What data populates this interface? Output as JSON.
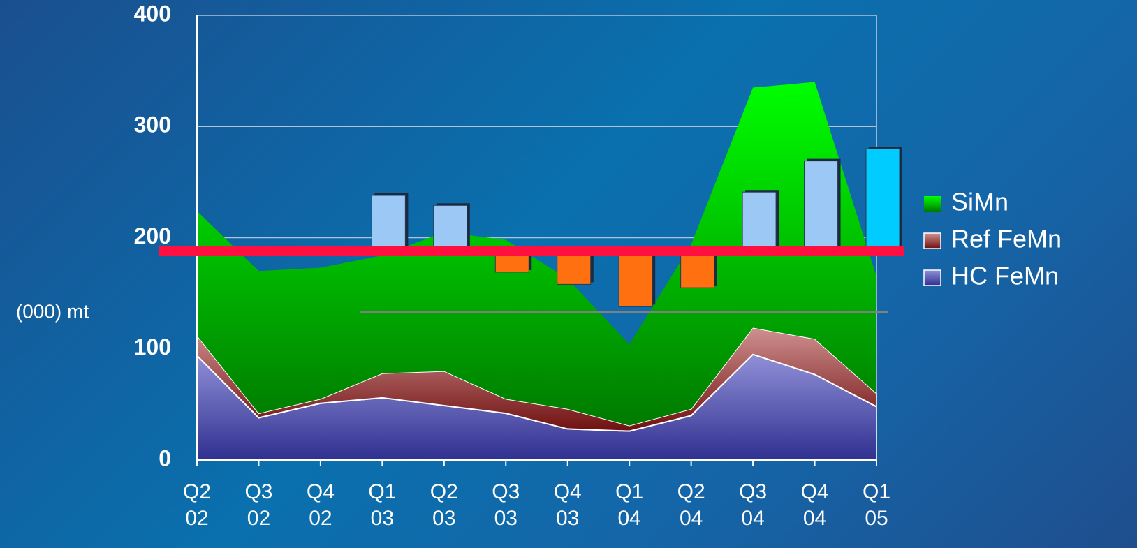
{
  "chart_data": {
    "type": "stacked_area_bar",
    "y_label": "(000) mt",
    "categories": [
      "Q2 02",
      "Q3 02",
      "Q4 02",
      "Q1 03",
      "Q2 03",
      "Q3 03",
      "Q4 03",
      "Q1 04",
      "Q2 04",
      "Q3 04",
      "Q4 04",
      "Q1 05"
    ],
    "series": [
      {
        "name": "HC FeMn",
        "color": "#5a5ab0",
        "values": [
          94,
          38,
          51,
          56,
          49,
          42,
          28,
          26,
          40,
          95,
          77,
          48
        ]
      },
      {
        "name": "Ref FeMn",
        "color": "#a03a3a",
        "values": [
          18,
          4,
          4,
          22,
          31,
          13,
          18,
          5,
          6,
          24,
          32,
          12
        ]
      },
      {
        "name": "SiMn",
        "color": "#00d400",
        "values": [
          112,
          128,
          118,
          106,
          125,
          143,
          117,
          73,
          148,
          216,
          231,
          105
        ]
      }
    ],
    "bars": {
      "base": 188,
      "values": [
        null,
        null,
        null,
        238,
        229,
        169,
        158,
        138,
        155,
        241,
        269,
        280
      ],
      "colors": [
        null,
        null,
        null,
        "#9cc8f5",
        "#9cc8f5",
        "#ff7010",
        "#ff7010",
        "#ff7010",
        "#ff7010",
        "#9cc8f5",
        "#9cc8f5",
        "#00ccff"
      ]
    },
    "reference_line": {
      "value": 133,
      "color": "#808080"
    },
    "base_line_color": "#ff1040",
    "ylim": [
      0,
      400
    ],
    "yticks": [
      0,
      100,
      200,
      300,
      400
    ],
    "grid": true,
    "legend": "right"
  }
}
